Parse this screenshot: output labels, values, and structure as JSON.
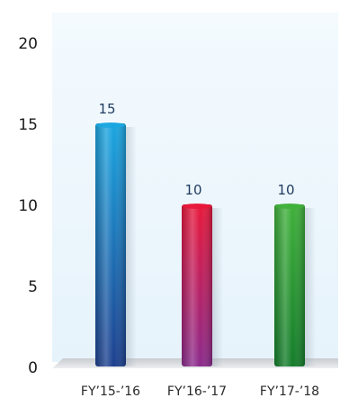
{
  "chart_data": {
    "type": "bar",
    "categories": [
      "FY’15-’16",
      "FY’16-’17",
      "FY’17-’18"
    ],
    "values": [
      15,
      10,
      10
    ],
    "data_labels": [
      "15",
      "10",
      "10"
    ],
    "yticks": [
      "0",
      "5",
      "10",
      "15",
      "20"
    ],
    "ylim": [
      0,
      20
    ],
    "grid": false,
    "bar_colors": [
      {
        "top": "#1aa6e0",
        "bottom": "#1d3f8e"
      },
      {
        "top": "#e8173a",
        "bottom": "#8a2a8c"
      },
      {
        "top": "#3fb03a",
        "bottom": "#137c2a"
      }
    ],
    "plot_background": "#e6f3fb",
    "label_color": "#1e3a5f"
  }
}
